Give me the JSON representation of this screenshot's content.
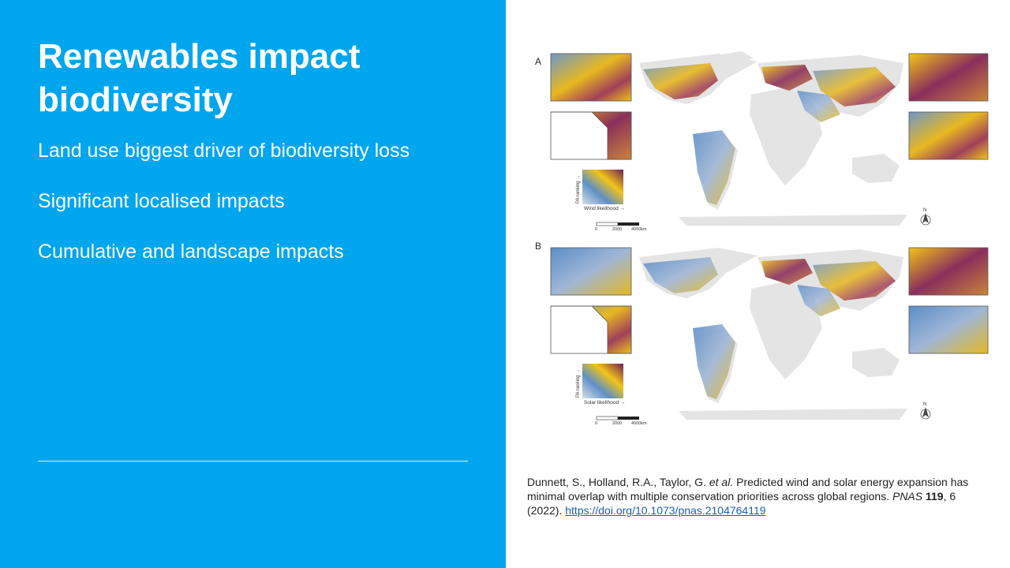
{
  "slide": {
    "title": "Renewables impact biodiversity",
    "bullets": [
      "Land use biggest driver of biodiversity loss",
      "Significant localised impacts",
      "Cumulative and landscape impacts"
    ]
  },
  "figure": {
    "panels": [
      {
        "letter": "A",
        "y_label": "PA ranking →",
        "x_label": "Wind likelihood →"
      },
      {
        "letter": "B",
        "y_label": "PA ranking →",
        "x_label": "Solar likelihood →"
      }
    ],
    "scale_ticks": [
      "0",
      "2000",
      "4000km"
    ],
    "north_label": "N"
  },
  "citation": {
    "authors": "Dunnett, S., Holland, R.A., Taylor, G.",
    "etal": "et al.",
    "title": " Predicted wind and solar energy expansion has minimal overlap with multiple conservation priorities across global regions. ",
    "journal": "PNAS",
    "volume": "119",
    "issue_year": ", 6 (2022). ",
    "doi": "https://doi.org/10.1073/pnas.2104764119"
  },
  "colors": {
    "panel_blue": "#00a6ed",
    "text_white": "#ffffff",
    "land_grey": "#e4e4e4",
    "map_yellow": "#f2c417",
    "map_purple": "#7b2a5a",
    "map_blue": "#5f8fc4"
  }
}
